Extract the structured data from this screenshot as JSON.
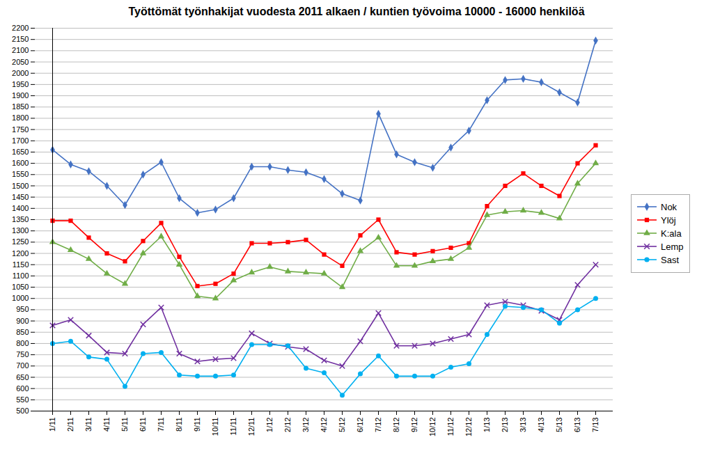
{
  "chart_data": {
    "type": "line",
    "title": "Työttömät työnhakijat vuodesta 2011 alkaen / kuntien työvoima 10000 - 16000 henkilöä",
    "categories": [
      "1/11",
      "2/11",
      "3/11",
      "4/11",
      "5/11",
      "6/11",
      "7/11",
      "8/11",
      "9/11",
      "10/11",
      "11/11",
      "12/11",
      "1/12",
      "2/12",
      "3/12",
      "4/12",
      "5/12",
      "6/12",
      "7/12",
      "8/12",
      "9/12",
      "10/12",
      "11/12",
      "12/12",
      "1/13",
      "2/13",
      "3/13",
      "4/13",
      "5/13",
      "6/13",
      "7/13"
    ],
    "ylim": [
      500,
      2200
    ],
    "yticks": [
      500,
      550,
      600,
      650,
      700,
      750,
      800,
      850,
      900,
      950,
      1000,
      1050,
      1100,
      1150,
      1200,
      1250,
      1300,
      1350,
      1400,
      1450,
      1500,
      1550,
      1600,
      1650,
      1700,
      1750,
      1800,
      1850,
      1900,
      1950,
      2000,
      2050,
      2100,
      2150,
      2200
    ],
    "grid": true,
    "legend": "right",
    "series": [
      {
        "name": "Nok",
        "color": "#4472C4",
        "marker": "diamond",
        "values": [
          1660,
          1595,
          1565,
          1500,
          1415,
          1550,
          1605,
          1445,
          1380,
          1395,
          1445,
          1585,
          1585,
          1570,
          1560,
          1530,
          1465,
          1435,
          1820,
          1640,
          1605,
          1580,
          1670,
          1745,
          1880,
          1970,
          1975,
          1960,
          1915,
          1870,
          2145
        ]
      },
      {
        "name": "Ylöj",
        "color": "#FF0000",
        "marker": "square",
        "values": [
          1345,
          1345,
          1270,
          1200,
          1165,
          1255,
          1335,
          1185,
          1055,
          1065,
          1110,
          1245,
          1245,
          1250,
          1260,
          1195,
          1145,
          1280,
          1350,
          1205,
          1195,
          1210,
          1225,
          1245,
          1410,
          1500,
          1555,
          1500,
          1455,
          1600,
          1680
        ]
      },
      {
        "name": "K:ala",
        "color": "#70AD47",
        "marker": "triangle",
        "values": [
          1250,
          1215,
          1175,
          1110,
          1065,
          1200,
          1275,
          1150,
          1010,
          1000,
          1080,
          1115,
          1140,
          1120,
          1115,
          1110,
          1050,
          1210,
          1270,
          1145,
          1145,
          1165,
          1175,
          1225,
          1370,
          1385,
          1390,
          1380,
          1355,
          1510,
          1600
        ]
      },
      {
        "name": "Lemp",
        "color": "#7030A0",
        "marker": "times",
        "values": [
          880,
          905,
          835,
          760,
          755,
          885,
          960,
          755,
          720,
          730,
          735,
          845,
          800,
          785,
          775,
          725,
          700,
          810,
          935,
          790,
          790,
          800,
          820,
          840,
          970,
          985,
          970,
          945,
          905,
          1060,
          1150
        ]
      },
      {
        "name": "Sast",
        "color": "#00B0F0",
        "marker": "circle",
        "values": [
          800,
          810,
          740,
          730,
          610,
          755,
          760,
          660,
          655,
          655,
          660,
          795,
          795,
          790,
          690,
          670,
          570,
          665,
          745,
          655,
          655,
          655,
          695,
          710,
          840,
          965,
          960,
          950,
          890,
          950,
          1000
        ]
      }
    ]
  }
}
